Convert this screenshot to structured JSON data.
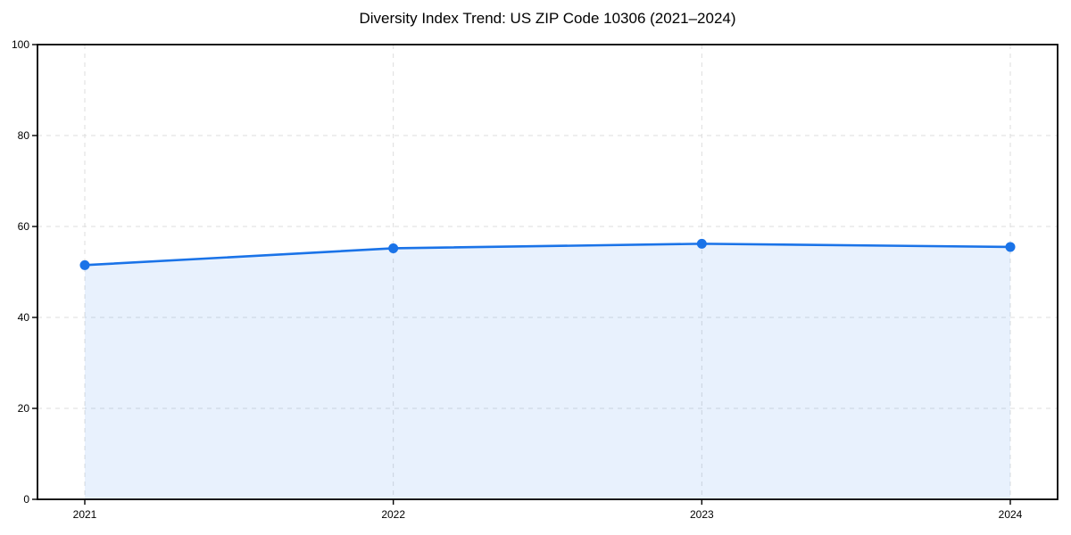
{
  "figure": {
    "background": "#ffffff"
  },
  "chart_data": {
    "type": "area",
    "title": "Diversity Index Trend: US ZIP Code 10306 (2021–2024)",
    "categories": [
      "2021",
      "2022",
      "2023",
      "2024"
    ],
    "values": [
      51.5,
      55.2,
      56.2,
      55.5
    ],
    "xlabel": "",
    "ylabel": "",
    "ylim": [
      0,
      100
    ],
    "yticks": [
      0,
      20,
      40,
      60,
      80,
      100
    ],
    "grid": true,
    "grid_style": "dashed",
    "legend": false,
    "marker": "circle",
    "colors": {
      "line": "#1a73e8",
      "marker": "#1a73e8",
      "fill": "#1a73e8",
      "fill_opacity": 0.1,
      "grid": "#dddddd",
      "spine": "#000000",
      "text": "#000000"
    }
  }
}
